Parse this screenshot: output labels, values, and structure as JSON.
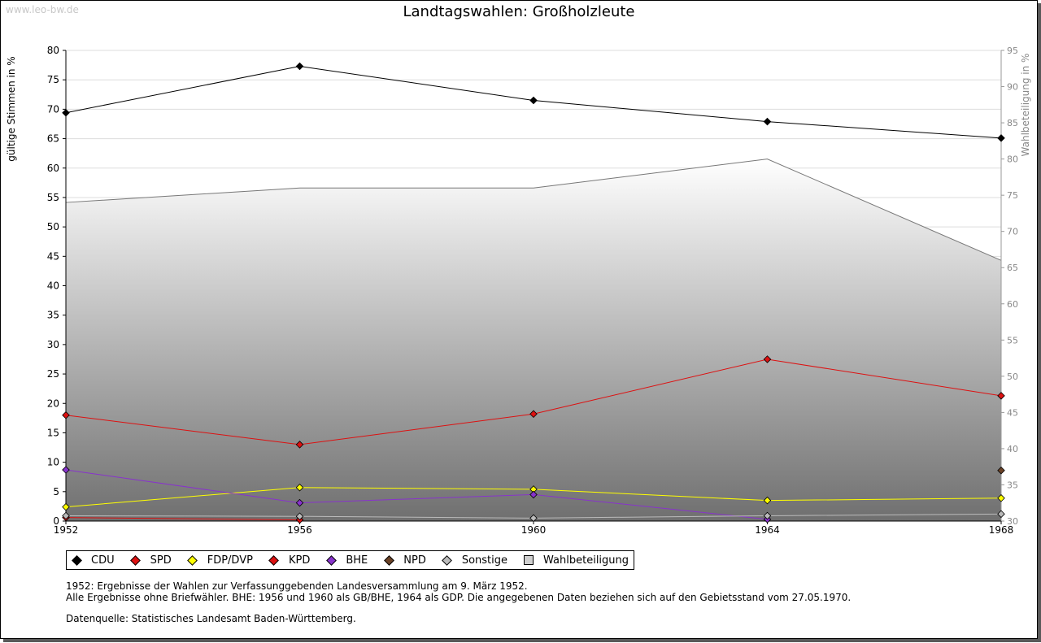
{
  "watermark": "www.leo-bw.de",
  "title": "Landtagswahlen: Großholzleute",
  "chart_data": {
    "type": "line",
    "title": "Landtagswahlen: Großholzleute",
    "ylabel": "gültige Stimmen in %",
    "ylabel_right": "Wahlbeteiligung in %",
    "x": [
      1952,
      1956,
      1960,
      1964,
      1968
    ],
    "xticks": [
      "1952",
      "1956",
      "1960",
      "1964",
      "1968"
    ],
    "ylim": [
      0,
      80
    ],
    "yticks": [
      0,
      5,
      10,
      15,
      20,
      25,
      30,
      35,
      40,
      45,
      50,
      55,
      60,
      65,
      70,
      75,
      80
    ],
    "ylim_right": [
      30,
      95
    ],
    "yticks_right": [
      30,
      35,
      40,
      45,
      50,
      55,
      60,
      65,
      70,
      75,
      80,
      85,
      90,
      95
    ],
    "grid": true,
    "legend_position": "bottom",
    "series": [
      {
        "name": "CDU",
        "color": "#000000",
        "values": [
          69.4,
          77.3,
          71.5,
          67.9,
          65.1
        ]
      },
      {
        "name": "SPD",
        "color": "#dd1111",
        "values": [
          18.0,
          13.0,
          18.2,
          27.5,
          21.3
        ]
      },
      {
        "name": "FDP/DVP",
        "color": "#ffff00",
        "values": [
          2.4,
          5.7,
          5.4,
          3.5,
          3.9
        ]
      },
      {
        "name": "KPD",
        "color": "#dd1111",
        "values": [
          0.6,
          0.2,
          null,
          null,
          null
        ]
      },
      {
        "name": "BHE",
        "color": "#8833cc",
        "values": [
          8.7,
          3.1,
          4.5,
          0.3,
          null
        ]
      },
      {
        "name": "NPD",
        "color": "#6b4226",
        "values": [
          null,
          null,
          null,
          null,
          8.6
        ]
      },
      {
        "name": "Sonstige",
        "color": "#bbbbbb",
        "values": [
          0.9,
          0.8,
          0.5,
          0.9,
          1.2
        ]
      },
      {
        "name": "Wahlbeteiligung",
        "color": "#cfcfcf",
        "axis": "right",
        "type": "area",
        "values": [
          74.0,
          76.0,
          76.0,
          80.0,
          66.0
        ]
      }
    ]
  },
  "legend": [
    {
      "label": "CDU",
      "color": "#000000",
      "shape": "diamond"
    },
    {
      "label": "SPD",
      "color": "#dd1111",
      "shape": "diamond"
    },
    {
      "label": "FDP/DVP",
      "color": "#ffff00",
      "shape": "diamond"
    },
    {
      "label": "KPD",
      "color": "#dd1111",
      "shape": "diamond"
    },
    {
      "label": "BHE",
      "color": "#8833cc",
      "shape": "diamond"
    },
    {
      "label": "NPD",
      "color": "#6b4226",
      "shape": "diamond"
    },
    {
      "label": "Sonstige",
      "color": "#bbbbbb",
      "shape": "diamond"
    },
    {
      "label": "Wahlbeteiligung",
      "color": "#cfcfcf",
      "shape": "square"
    }
  ],
  "notes": {
    "line1": "1952: Ergebnisse der Wahlen zur Verfassunggebenden Landesversammlung am 9. März 1952.",
    "line2": "Alle Ergebnisse ohne Briefwähler. BHE: 1956 und 1960 als GB/BHE, 1964 als GDP. Die angegebenen Daten beziehen sich auf den Gebietsstand vom 27.05.1970.",
    "source": "Datenquelle: Statistisches Landesamt Baden-Württemberg."
  }
}
